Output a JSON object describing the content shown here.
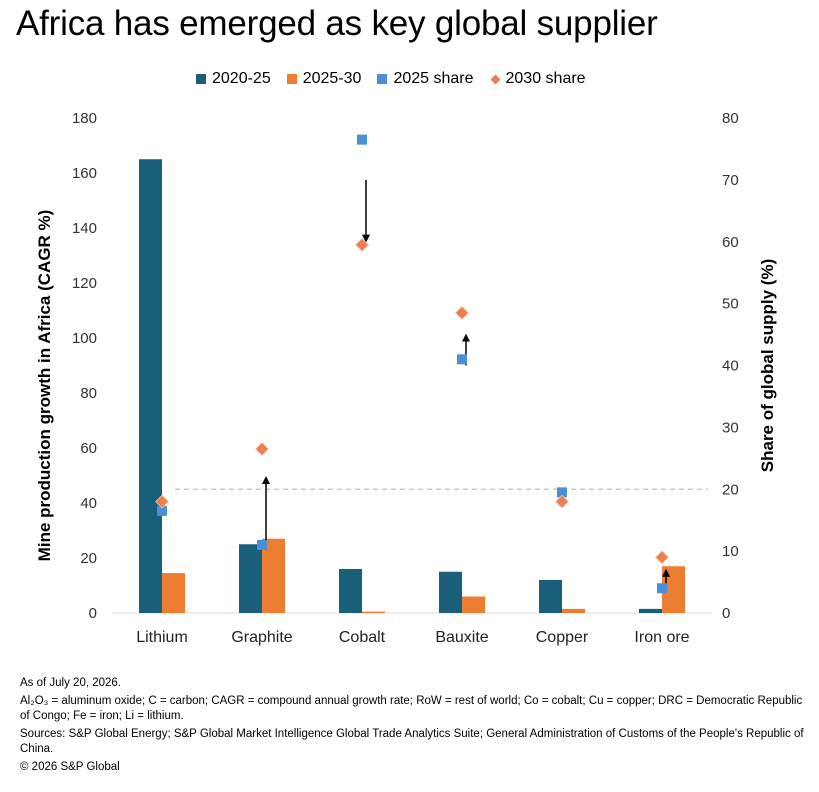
{
  "title": "Africa has emerged as key global supplier",
  "colors": {
    "s2020_25": "#1a5f7a",
    "s2025_30": "#ed7d31",
    "share2025": "#4a90d9",
    "share2030": "#e9804d",
    "gridline": "#bfbfbf"
  },
  "legend": [
    {
      "label": "2020-25",
      "shape": "square",
      "color": "#1a5f7a"
    },
    {
      "label": "2025-30",
      "shape": "square",
      "color": "#ed7d31"
    },
    {
      "label": "2025 share",
      "shape": "square",
      "color": "#4a90d9"
    },
    {
      "label": "2030 share",
      "shape": "diamond",
      "color": "#e9804d"
    }
  ],
  "chart_data": {
    "type": "bar",
    "categories": [
      "Lithium",
      "Graphite",
      "Cobalt",
      "Bauxite",
      "Copper",
      "Iron ore"
    ],
    "series": [
      {
        "name": "2020-25",
        "type": "bar",
        "axis": "left",
        "values": [
          165,
          25,
          16,
          15,
          12,
          1.5
        ]
      },
      {
        "name": "2025-30",
        "type": "bar",
        "axis": "left",
        "values": [
          14.5,
          27,
          0.5,
          6,
          1.5,
          17
        ]
      },
      {
        "name": "2025 share",
        "type": "scatter",
        "marker": "square",
        "axis": "right",
        "values": [
          16.5,
          11,
          76.5,
          41,
          19.5,
          4
        ]
      },
      {
        "name": "2030 share",
        "type": "scatter",
        "marker": "diamond",
        "axis": "right",
        "values": [
          18,
          26.5,
          59.5,
          48.5,
          18,
          9
        ]
      }
    ],
    "arrows": [
      {
        "category": "Graphite",
        "from": 11.5,
        "to": 21.5,
        "axis": "right"
      },
      {
        "category": "Cobalt",
        "from": 70,
        "to": 60.5,
        "axis": "right"
      },
      {
        "category": "Bauxite",
        "from": 40,
        "to": 44.5,
        "axis": "right"
      },
      {
        "category": "Iron ore",
        "from": 3.5,
        "to": 6.5,
        "axis": "right"
      }
    ],
    "reference_line": {
      "axis": "right",
      "value": 20,
      "style": "dashed"
    },
    "ylabel": "Mine production growth in Africa (CAGR %)",
    "ylabel_right": "Share of global supply (%)",
    "ylim": [
      0,
      180
    ],
    "ylim_right": [
      0,
      80
    ],
    "yticks": [
      0,
      20,
      40,
      60,
      80,
      100,
      120,
      140,
      160,
      180
    ],
    "yticks_right": [
      0,
      10,
      20,
      30,
      40,
      50,
      60,
      70,
      80
    ],
    "legend_position": "top"
  },
  "footer": {
    "as_of": "As of July 20, 2026.",
    "abbreviations": "Al₂O₃ = aluminum oxide; C = carbon; CAGR = compound annual growth rate; RoW = rest of world; Co = cobalt; Cu = copper; DRC = Democratic Republic of Congo; Fe = iron; Li = lithium.",
    "sources": "Sources: S&P Global Energy; S&P Global Market Intelligence Global Trade Analytics Suite; General Administration of Customs of the People's Republic of China.",
    "copyright": "© 2026 S&P Global"
  }
}
